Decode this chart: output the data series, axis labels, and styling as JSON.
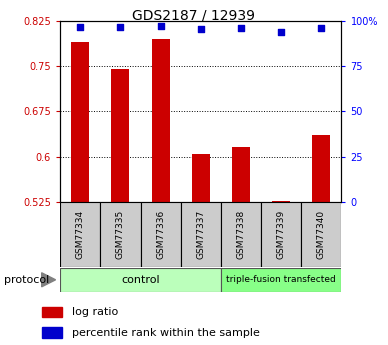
{
  "title": "GDS2187 / 12939",
  "samples": [
    "GSM77334",
    "GSM77335",
    "GSM77336",
    "GSM77337",
    "GSM77338",
    "GSM77339",
    "GSM77340"
  ],
  "log_ratio": [
    0.79,
    0.745,
    0.795,
    0.605,
    0.615,
    0.527,
    0.635
  ],
  "percentile_rank": [
    96.5,
    96.5,
    97.0,
    95.5,
    96.0,
    93.5,
    96.0
  ],
  "ylim_left": [
    0.525,
    0.825
  ],
  "ylim_right": [
    0,
    100
  ],
  "yticks_left": [
    0.525,
    0.6,
    0.675,
    0.75,
    0.825
  ],
  "ytick_labels_left": [
    "0.525",
    "0.6",
    "0.675",
    "0.75",
    "0.825"
  ],
  "yticks_right": [
    0,
    25,
    50,
    75,
    100
  ],
  "ytick_labels_right": [
    "0",
    "25",
    "50",
    "75",
    "100%"
  ],
  "bar_color": "#cc0000",
  "scatter_color": "#0000cc",
  "bar_bottom": 0.525,
  "gridlines": [
    0.6,
    0.675,
    0.75
  ],
  "protocol_groups": [
    {
      "label": "control",
      "n_samples": 4,
      "color": "#bbffbb"
    },
    {
      "label": "triple-fusion transfected",
      "n_samples": 3,
      "color": "#88ff88"
    }
  ],
  "protocol_label": "protocol",
  "legend_items": [
    {
      "color": "#cc0000",
      "label": "log ratio"
    },
    {
      "color": "#0000cc",
      "label": "percentile rank within the sample"
    }
  ],
  "bg_color": "#ffffff",
  "sample_box_color": "#cccccc",
  "title_fontsize": 10,
  "label_fontsize": 7,
  "legend_fontsize": 8
}
